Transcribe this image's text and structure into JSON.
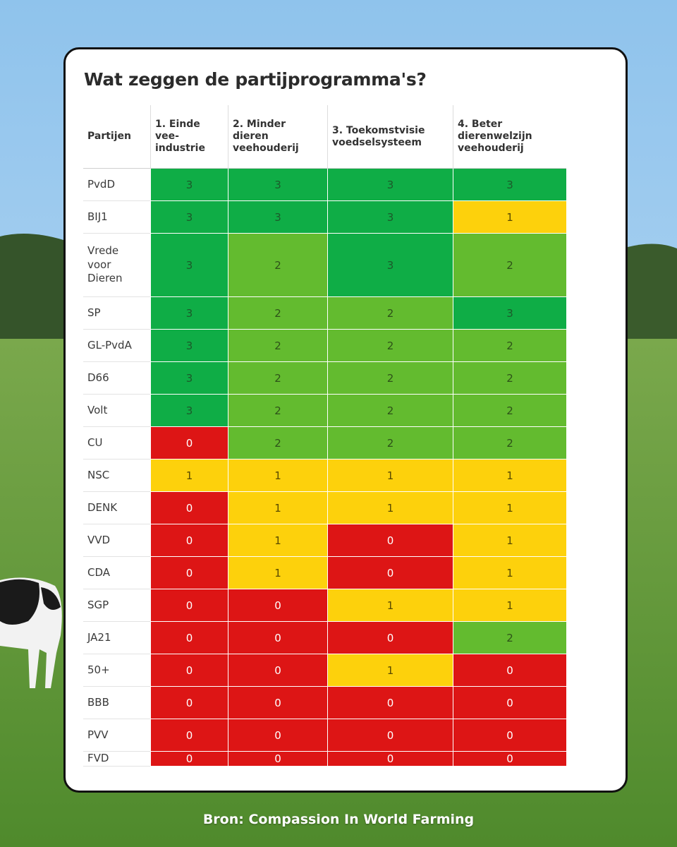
{
  "title": "Wat zeggen de partijprogramma's?",
  "source": "Bron: Compassion In World Farming",
  "colors": {
    "0": "#dd1515",
    "1": "#fdd10c",
    "2": "#63bb2f",
    "3": "#0fad46",
    "text_0": "#ffffff",
    "text_1": "#5a4a00",
    "text_2": "#2d5218",
    "text_3": "#1c5a2a"
  },
  "chart_data": {
    "type": "table",
    "title": "Wat zeggen de partijprogramma's?",
    "row_header": "Partijen",
    "columns": [
      "1. Einde\nvee-\nindustrie",
      "2. Minder\ndieren\nveehouderij",
      "3. Toekomstvisie\nvoedselsysteem",
      "4. Beter\ndierenwelzijn\nveehouderij"
    ],
    "rows": [
      {
        "party": "PvdD",
        "scores": [
          3,
          3,
          3,
          3
        ]
      },
      {
        "party": "BIJ1",
        "scores": [
          3,
          3,
          3,
          1
        ]
      },
      {
        "party": "Vrede\nvoor\nDieren",
        "scores": [
          3,
          2,
          3,
          2
        ]
      },
      {
        "party": "SP",
        "scores": [
          3,
          2,
          2,
          3
        ]
      },
      {
        "party": "GL-PvdA",
        "scores": [
          3,
          2,
          2,
          2
        ]
      },
      {
        "party": "D66",
        "scores": [
          3,
          2,
          2,
          2
        ]
      },
      {
        "party": "Volt",
        "scores": [
          3,
          2,
          2,
          2
        ]
      },
      {
        "party": "CU",
        "scores": [
          0,
          2,
          2,
          2
        ]
      },
      {
        "party": "NSC",
        "scores": [
          1,
          1,
          1,
          1
        ]
      },
      {
        "party": "DENK",
        "scores": [
          0,
          1,
          1,
          1
        ]
      },
      {
        "party": "VVD",
        "scores": [
          0,
          1,
          0,
          1
        ]
      },
      {
        "party": "CDA",
        "scores": [
          0,
          1,
          0,
          1
        ]
      },
      {
        "party": "SGP",
        "scores": [
          0,
          0,
          1,
          1
        ]
      },
      {
        "party": "JA21",
        "scores": [
          0,
          0,
          0,
          2
        ]
      },
      {
        "party": "50+",
        "scores": [
          0,
          0,
          1,
          0
        ]
      },
      {
        "party": "BBB",
        "scores": [
          0,
          0,
          0,
          0
        ]
      },
      {
        "party": "PVV",
        "scores": [
          0,
          0,
          0,
          0
        ]
      },
      {
        "party": "FVD",
        "scores": [
          0,
          0,
          0,
          0
        ]
      }
    ]
  }
}
